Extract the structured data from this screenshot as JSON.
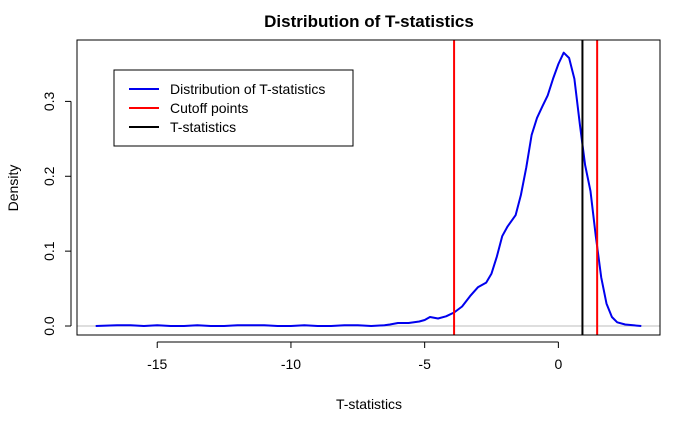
{
  "chart_data": {
    "type": "line",
    "title": "Distribution of T-statistics",
    "xlabel": "T-statistics",
    "ylabel": "Density",
    "xlim": [
      -18.0,
      3.8
    ],
    "ylim": [
      -0.012,
      0.382
    ],
    "x_ticks": [
      -15,
      -10,
      -5,
      0
    ],
    "x_tick_labels": [
      "-15",
      "-10",
      "-5",
      "0"
    ],
    "y_ticks": [
      0.0,
      0.1,
      0.2,
      0.3
    ],
    "y_tick_labels": [
      "0.0",
      "0.1",
      "0.2",
      "0.3"
    ],
    "grid": false,
    "legend_position": "top-left",
    "series": [
      {
        "name": "Distribution of T-statistics",
        "color": "#0000ee",
        "x": [
          -17.3,
          -16.5,
          -16,
          -15.5,
          -15,
          -14.5,
          -14,
          -13.5,
          -13,
          -12.5,
          -12,
          -11.5,
          -11,
          -10.5,
          -10,
          -9.5,
          -9,
          -8.5,
          -8,
          -7.5,
          -7,
          -6.5,
          -6.3,
          -6,
          -5.6,
          -5.2,
          -5,
          -4.8,
          -4.5,
          -4.2,
          -3.9,
          -3.6,
          -3.3,
          -3,
          -2.7,
          -2.5,
          -2.3,
          -2.1,
          -1.9,
          -1.6,
          -1.4,
          -1.2,
          -1,
          -0.8,
          -0.6,
          -0.4,
          -0.2,
          0,
          0.2,
          0.4,
          0.6,
          0.8,
          1,
          1.2,
          1.4,
          1.6,
          1.8,
          2,
          2.2,
          2.5,
          2.8,
          3.1
        ],
        "y": [
          0.0,
          0.001,
          0.001,
          0.0,
          0.001,
          0.0,
          0.0,
          0.001,
          0.0,
          0.0,
          0.001,
          0.001,
          0.001,
          0.0,
          0.0,
          0.001,
          0.0,
          0.0,
          0.001,
          0.001,
          0.0,
          0.001,
          0.002,
          0.004,
          0.004,
          0.006,
          0.008,
          0.012,
          0.01,
          0.013,
          0.018,
          0.026,
          0.04,
          0.052,
          0.058,
          0.07,
          0.093,
          0.12,
          0.133,
          0.148,
          0.175,
          0.212,
          0.255,
          0.278,
          0.293,
          0.308,
          0.33,
          0.35,
          0.365,
          0.358,
          0.33,
          0.27,
          0.215,
          0.18,
          0.12,
          0.065,
          0.03,
          0.012,
          0.005,
          0.002,
          0.001,
          0.0
        ]
      },
      {
        "name": "Cutoff points",
        "color": "#ff0000",
        "vlines": [
          -3.9,
          1.45
        ]
      },
      {
        "name": "T-statistics",
        "color": "#000000",
        "vlines": [
          0.9
        ]
      }
    ],
    "reference_hline": {
      "y": 0.0,
      "color": "#bebebe"
    }
  }
}
